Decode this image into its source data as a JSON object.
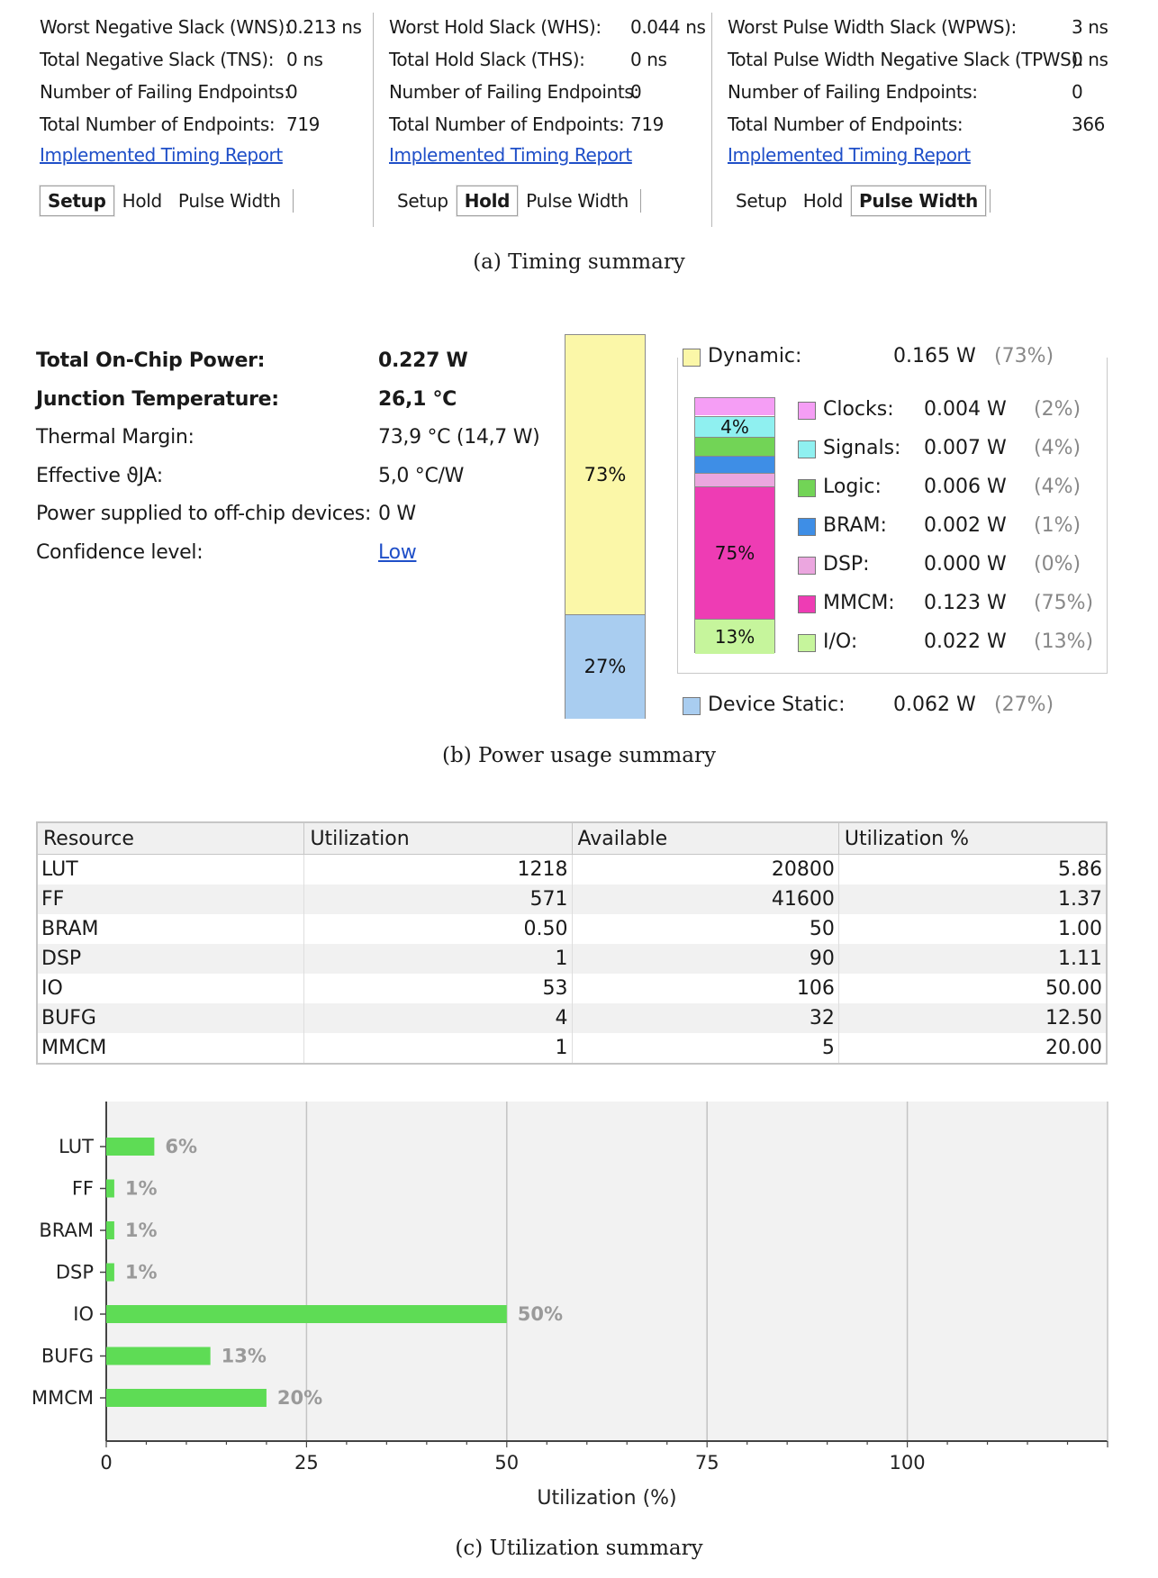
{
  "timing": {
    "panels": [
      {
        "rows": [
          {
            "label": "Worst Negative Slack (WNS):",
            "value": "0.213 ns"
          },
          {
            "label": "Total Negative Slack (TNS):",
            "value": "0 ns"
          },
          {
            "label": "Number of Failing Endpoints:",
            "value": "0"
          },
          {
            "label": "Total Number of Endpoints:",
            "value": "719"
          }
        ],
        "link": "Implemented Timing Report",
        "tabs": [
          "Setup",
          "Hold",
          "Pulse Width"
        ],
        "active_tab": "Setup"
      },
      {
        "rows": [
          {
            "label": "Worst Hold Slack (WHS):",
            "value": "0.044 ns"
          },
          {
            "label": "Total Hold Slack (THS):",
            "value": "0 ns"
          },
          {
            "label": "Number of Failing Endpoints:",
            "value": "0"
          },
          {
            "label": "Total Number of Endpoints:",
            "value": "719"
          }
        ],
        "link": "Implemented Timing Report",
        "tabs": [
          "Setup",
          "Hold",
          "Pulse Width"
        ],
        "active_tab": "Hold"
      },
      {
        "rows": [
          {
            "label": "Worst Pulse Width Slack (WPWS):",
            "value": "3 ns"
          },
          {
            "label": "Total Pulse Width Negative Slack (TPWS):",
            "value": "0 ns"
          },
          {
            "label": "Number of Failing Endpoints:",
            "value": "0"
          },
          {
            "label": "Total Number of Endpoints:",
            "value": "366"
          }
        ],
        "link": "Implemented Timing Report",
        "tabs": [
          "Setup",
          "Hold",
          "Pulse Width"
        ],
        "active_tab": "Pulse Width"
      }
    ],
    "caption": "(a)  Timing summary"
  },
  "power": {
    "rows": [
      {
        "label": "Total On-Chip Power:",
        "value": "0.227 W",
        "bold": true
      },
      {
        "label": "Junction Temperature:",
        "value": "26,1 °C",
        "bold": true
      },
      {
        "label": "Thermal Margin:",
        "value": "73,9 °C (14,7 W)"
      },
      {
        "label": "Effective ϑJA:",
        "value": "5,0 °C/W"
      },
      {
        "label": "Power supplied to off-chip devices:",
        "value": "0 W"
      },
      {
        "label": "Confidence level:",
        "value": "Low",
        "link": true
      }
    ],
    "total_bar": [
      {
        "name": "Dynamic",
        "label": "73%",
        "fraction": 0.73,
        "color": "#fbf7a8"
      },
      {
        "name": "Device Static",
        "label": "27%",
        "fraction": 0.27,
        "color": "#a9cdf0"
      }
    ],
    "dynamic_bar": [
      {
        "name": "Clocks",
        "label": "",
        "fraction": 0.02,
        "color": "#f59ef5"
      },
      {
        "name": "Signals",
        "label": "4%",
        "fraction": 0.04,
        "color": "#8ff0f0"
      },
      {
        "name": "Logic",
        "label": "",
        "fraction": 0.04,
        "color": "#72d456"
      },
      {
        "name": "BRAM",
        "label": "",
        "fraction": 0.01,
        "color": "#3e8ee6"
      },
      {
        "name": "DSP",
        "label": "",
        "fraction": 0.0,
        "color": "#eba6df"
      },
      {
        "name": "MMCM",
        "label": "75%",
        "fraction": 0.75,
        "color": "#ee3cb4"
      },
      {
        "name": "I/O",
        "label": "13%",
        "fraction": 0.13,
        "color": "#c6f59c"
      }
    ],
    "dynamic": {
      "name": "Dynamic:",
      "watts": "0.165 W",
      "pct": "(73%)",
      "color": "#fbf7a8"
    },
    "static": {
      "name": "Device Static:",
      "watts": "0.062 W",
      "pct": "(27%)",
      "color": "#a9cdf0"
    },
    "breakdown": [
      {
        "name": "Clocks:",
        "watts": "0.004 W",
        "pct": "(2%)",
        "color": "#f59ef5"
      },
      {
        "name": "Signals:",
        "watts": "0.007 W",
        "pct": "(4%)",
        "color": "#8ff0f0"
      },
      {
        "name": "Logic:",
        "watts": "0.006 W",
        "pct": "(4%)",
        "color": "#72d456"
      },
      {
        "name": "BRAM:",
        "watts": "0.002 W",
        "pct": "(1%)",
        "color": "#3e8ee6"
      },
      {
        "name": "DSP:",
        "watts": "0.000 W",
        "pct": "(0%)",
        "color": "#eba6df"
      },
      {
        "name": "MMCM:",
        "watts": "0.123 W",
        "pct": "(75%)",
        "color": "#ee3cb4"
      },
      {
        "name": "I/O:",
        "watts": "0.022 W",
        "pct": "(13%)",
        "color": "#c6f59c"
      }
    ],
    "caption": "(b)  Power usage summary"
  },
  "utilization": {
    "columns": [
      "Resource",
      "Utilization",
      "Available",
      "Utilization %"
    ],
    "rows": [
      [
        "LUT",
        "1218",
        "20800",
        "5.86"
      ],
      [
        "FF",
        "571",
        "41600",
        "1.37"
      ],
      [
        "BRAM",
        "0.50",
        "50",
        "1.00"
      ],
      [
        "DSP",
        "1",
        "90",
        "1.11"
      ],
      [
        "IO",
        "53",
        "106",
        "50.00"
      ],
      [
        "BUFG",
        "4",
        "32",
        "12.50"
      ],
      [
        "MMCM",
        "1",
        "5",
        "20.00"
      ]
    ],
    "caption": "(c)  Utilization summary"
  },
  "chart_data": {
    "type": "bar",
    "orientation": "horizontal",
    "categories": [
      "LUT",
      "FF",
      "BRAM",
      "DSP",
      "IO",
      "BUFG",
      "MMCM"
    ],
    "values": [
      6,
      1,
      1,
      1,
      50,
      13,
      20
    ],
    "labels": [
      "6%",
      "1%",
      "1%",
      "1%",
      "50%",
      "13%",
      "20%"
    ],
    "xlabel": "Utilization (%)",
    "xticks": [
      0,
      25,
      50,
      75,
      100
    ],
    "xlim": [
      0,
      125
    ],
    "grid": true,
    "bar_color": "#5edc55"
  }
}
